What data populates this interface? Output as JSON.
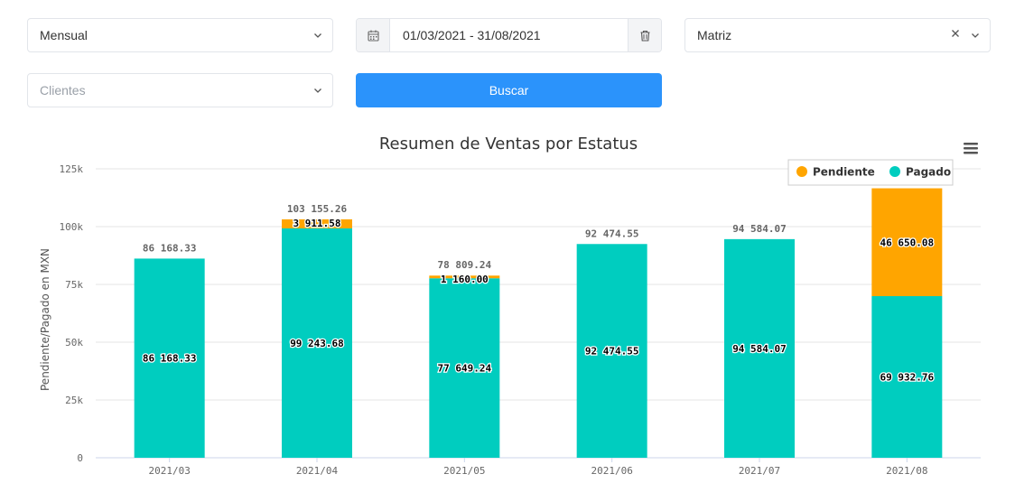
{
  "filters": {
    "period_value": "Mensual",
    "date_range_value": "01/03/2021 - 31/08/2021",
    "branch_value": "Matriz",
    "clients_placeholder": "Clientes",
    "search_label": "Buscar"
  },
  "colors": {
    "primary": "#2b93fb",
    "pagado": "#00cdbf",
    "pendiente": "#ffa500"
  },
  "chart_data": {
    "type": "bar",
    "stacked": true,
    "title": "Resumen de Ventas por Estatus",
    "ylabel": "Pendiente/Pagado en MXN",
    "xlabel": "",
    "categories": [
      "2021/03",
      "2021/04",
      "2021/05",
      "2021/06",
      "2021/07",
      "2021/08"
    ],
    "series": [
      {
        "name": "Pagado",
        "values": [
          86168.33,
          99243.68,
          77649.24,
          92474.55,
          94584.07,
          69932.76
        ],
        "labels": [
          "86 168.33",
          "99 243.68",
          "77 649.24",
          "92 474.55",
          "94 584.07",
          "69 932.76"
        ]
      },
      {
        "name": "Pendiente",
        "values": [
          0,
          3911.58,
          1160.0,
          0,
          0,
          46650.08
        ],
        "labels": [
          "",
          "3 911.58",
          "1 160.00",
          "",
          "",
          "46 650.08"
        ]
      }
    ],
    "totals": [
      "86 168.33",
      "103 155.26",
      "78 809.24",
      "92 474.55",
      "94 584.07",
      ""
    ],
    "legend": [
      "Pendiente",
      "Pagado"
    ],
    "legend_position": "top-right",
    "ylim": [
      0,
      125000
    ],
    "yticks": [
      0,
      25000,
      50000,
      75000,
      100000,
      125000
    ],
    "ytick_labels": [
      "0",
      "25k",
      "50k",
      "75k",
      "100k",
      "125k"
    ],
    "grid": true
  }
}
